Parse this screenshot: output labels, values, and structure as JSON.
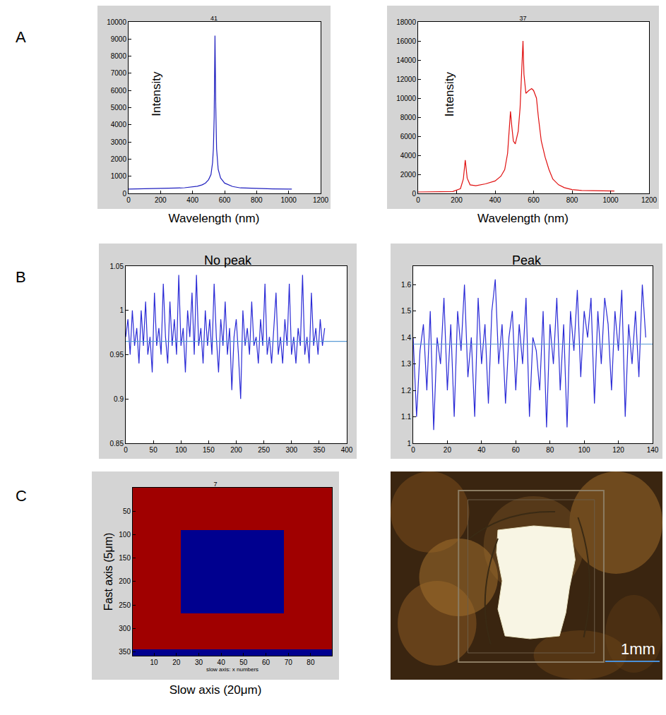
{
  "panel_letters": [
    "A",
    "B",
    "C"
  ],
  "chart_data": [
    {
      "type": "line",
      "title": "41",
      "xlabel": "Wavelength (nm)",
      "ylabel": "Intensity",
      "xlim": [
        0,
        1200
      ],
      "xticks": [
        0,
        200,
        400,
        600,
        800,
        1000,
        1200
      ],
      "ylim": [
        0,
        10000
      ],
      "yticks": [
        0,
        1000,
        2000,
        3000,
        4000,
        5000,
        6000,
        7000,
        8000,
        9000,
        10000
      ],
      "grid": false,
      "series": [
        {
          "color": "#1f1fbf",
          "x": [
            0,
            50,
            100,
            150,
            200,
            250,
            300,
            350,
            400,
            430,
            460,
            480,
            500,
            515,
            525,
            530,
            535,
            540,
            545,
            550,
            560,
            575,
            600,
            650,
            700,
            800,
            900,
            1000,
            1020
          ],
          "values": [
            250,
            255,
            260,
            265,
            290,
            300,
            310,
            330,
            370,
            420,
            500,
            600,
            800,
            1100,
            1800,
            2600,
            4500,
            9200,
            5000,
            2600,
            1400,
            900,
            600,
            400,
            320,
            280,
            260,
            250,
            250
          ]
        }
      ]
    },
    {
      "type": "line",
      "title": "37",
      "xlabel": "Wavelength (nm)",
      "ylabel": "Intensity",
      "xlim": [
        0,
        1200
      ],
      "xticks": [
        0,
        200,
        400,
        600,
        800,
        1000,
        1200
      ],
      "ylim": [
        0,
        18000
      ],
      "yticks": [
        0,
        2000,
        4000,
        6000,
        8000,
        10000,
        12000,
        14000,
        16000,
        18000
      ],
      "grid": false,
      "series": [
        {
          "color": "#e01010",
          "x": [
            0,
            100,
            180,
            220,
            235,
            245,
            255,
            270,
            300,
            350,
            400,
            430,
            450,
            465,
            475,
            480,
            487,
            495,
            505,
            520,
            530,
            540,
            545,
            550,
            560,
            575,
            590,
            600,
            615,
            625,
            640,
            660,
            680,
            700,
            730,
            760,
            800,
            850,
            950,
            1020
          ],
          "values": [
            150,
            150,
            200,
            500,
            1500,
            3500,
            1600,
            900,
            800,
            1000,
            1300,
            1800,
            2500,
            4200,
            7000,
            8600,
            7000,
            5500,
            5200,
            6500,
            9000,
            13500,
            16000,
            12500,
            10500,
            10800,
            11000,
            10800,
            10000,
            8000,
            5500,
            3800,
            2500,
            1500,
            900,
            600,
            400,
            300,
            250,
            250
          ]
        }
      ]
    },
    {
      "type": "line",
      "title": "No peak",
      "xlim": [
        0,
        400
      ],
      "xticks": [
        0,
        50,
        100,
        150,
        200,
        250,
        300,
        350,
        400
      ],
      "ylim": [
        0.85,
        1.05
      ],
      "yticks": [
        0.85,
        0.9,
        0.95,
        1,
        1.05
      ],
      "grid": false,
      "series": [
        {
          "color": "#2b2bd6",
          "x": [
            0,
            4,
            8,
            12,
            16,
            20,
            24,
            28,
            32,
            36,
            40,
            44,
            48,
            52,
            56,
            60,
            64,
            68,
            72,
            76,
            80,
            84,
            88,
            92,
            96,
            100,
            104,
            108,
            112,
            116,
            120,
            124,
            128,
            132,
            136,
            140,
            144,
            148,
            152,
            156,
            160,
            164,
            168,
            172,
            176,
            180,
            184,
            188,
            192,
            196,
            200,
            204,
            208,
            212,
            216,
            220,
            224,
            228,
            232,
            236,
            240,
            244,
            248,
            252,
            256,
            260,
            264,
            268,
            272,
            276,
            280,
            284,
            288,
            292,
            296,
            300,
            304,
            308,
            312,
            316,
            320,
            324,
            328,
            332,
            336,
            340,
            344,
            348,
            352,
            356,
            360
          ],
          "values": [
            0.97,
            0.99,
            0.95,
            1.0,
            0.96,
            0.98,
            0.94,
            1.0,
            0.96,
            1.01,
            0.95,
            0.97,
            0.93,
            1.02,
            0.96,
            0.98,
            0.95,
            1.03,
            0.97,
            0.94,
            1.01,
            0.96,
            0.99,
            0.95,
            1.04,
            0.96,
            0.98,
            0.93,
            1.0,
            0.97,
            1.02,
            0.95,
            1.04,
            0.96,
            0.98,
            0.94,
            1.0,
            0.96,
            0.99,
            0.95,
            1.03,
            0.97,
            0.93,
            0.99,
            0.96,
            1.01,
            0.95,
            0.98,
            0.91,
            0.97,
            0.99,
            0.95,
            0.9,
            1.0,
            0.96,
            0.98,
            0.95,
            1.01,
            0.96,
            0.97,
            0.94,
            0.99,
            0.96,
            1.03,
            0.95,
            0.97,
            0.94,
            0.98,
            1.02,
            0.95,
            0.97,
            0.94,
            0.99,
            0.96,
            1.03,
            0.95,
            0.97,
            0.94,
            0.98,
            0.96,
            1.04,
            0.95,
            0.97,
            0.94,
            1.02,
            0.96,
            0.98,
            0.95,
            0.99,
            0.96,
            0.98
          ]
        },
        {
          "color": "#5b9bd5",
          "x": [
            0,
            400
          ],
          "values": [
            0.965,
            0.965
          ]
        }
      ]
    },
    {
      "type": "line",
      "title": "Peak",
      "xlim": [
        0,
        140
      ],
      "xticks": [
        0,
        20,
        40,
        60,
        80,
        100,
        120,
        140
      ],
      "ylim": [
        1,
        1.67
      ],
      "yticks": [
        1,
        1.1,
        1.2,
        1.3,
        1.4,
        1.5,
        1.6
      ],
      "grid": false,
      "series": [
        {
          "color": "#2b2bd6",
          "x": [
            0,
            2,
            4,
            6,
            8,
            10,
            12,
            14,
            16,
            18,
            20,
            22,
            24,
            26,
            28,
            30,
            32,
            34,
            36,
            38,
            40,
            42,
            44,
            46,
            48,
            50,
            52,
            54,
            56,
            58,
            60,
            62,
            64,
            66,
            68,
            70,
            72,
            74,
            76,
            78,
            80,
            82,
            84,
            86,
            88,
            90,
            92,
            94,
            96,
            98,
            100,
            102,
            104,
            106,
            108,
            110,
            112,
            114,
            116,
            118,
            120,
            122,
            124,
            126,
            128,
            130,
            132,
            134,
            136
          ],
          "values": [
            1.4,
            1.1,
            1.35,
            1.45,
            1.2,
            1.5,
            1.05,
            1.4,
            1.3,
            1.55,
            1.2,
            1.45,
            1.1,
            1.5,
            1.35,
            1.6,
            1.25,
            1.4,
            1.1,
            1.55,
            1.3,
            1.45,
            1.15,
            1.5,
            1.62,
            1.3,
            1.45,
            1.15,
            1.4,
            1.5,
            1.2,
            1.45,
            1.3,
            1.55,
            1.1,
            1.4,
            1.35,
            1.2,
            1.5,
            1.06,
            1.45,
            1.3,
            1.55,
            1.2,
            1.45,
            1.06,
            1.5,
            1.35,
            1.58,
            1.25,
            1.5,
            1.4,
            1.55,
            1.15,
            1.5,
            1.3,
            1.55,
            1.45,
            1.2,
            1.5,
            1.35,
            1.58,
            1.1,
            1.45,
            1.3,
            1.5,
            1.25,
            1.6,
            1.4
          ]
        },
        {
          "color": "#5b9bd5",
          "x": [
            0,
            140
          ],
          "values": [
            1.375,
            1.375
          ]
        }
      ]
    },
    {
      "type": "heatmap",
      "title": "7",
      "xlabel": "slow axis: x numbers",
      "ylabel": "Fast axis (5μm)",
      "caption": "Slow axis (20μm)",
      "xlim": [
        0.5,
        89.5
      ],
      "xticks": [
        10,
        20,
        30,
        40,
        50,
        60,
        70,
        80
      ],
      "ylim": [
        358,
        0
      ],
      "yticks": [
        50,
        100,
        150,
        200,
        250,
        300,
        350
      ],
      "x": [
        0.5,
        22,
        68,
        89.5
      ],
      "y": [
        0,
        90,
        268,
        345,
        358
      ],
      "z": [
        [
          1,
          1,
          1
        ],
        [
          1,
          0,
          1
        ],
        [
          1,
          1,
          1
        ],
        [
          0,
          0,
          0
        ]
      ],
      "zlim": [
        0,
        1
      ],
      "colors": [
        "#00008f",
        "#a00000"
      ],
      "grid": false
    },
    {
      "type": "image",
      "scale_bar": "1mm"
    }
  ]
}
